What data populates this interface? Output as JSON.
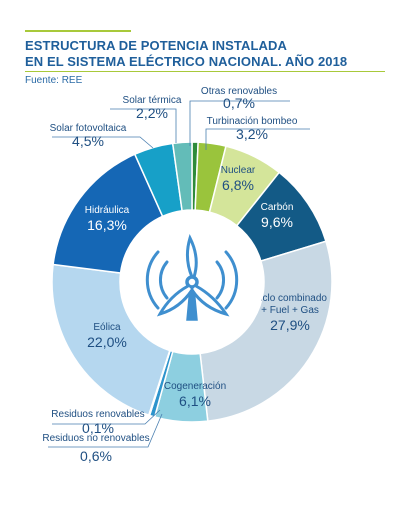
{
  "header": {
    "title_line1": "ESTRUCTURA DE POTENCIA INSTALADA",
    "title_line2": "EN EL SISTEMA ELÉCTRICO NACIONAL. AÑO 2018",
    "source": "Fuente: REE"
  },
  "icon": "wind-turbine-icon",
  "chart_data": {
    "type": "pie",
    "title": "ESTRUCTURA DE POTENCIA INSTALADA EN EL SISTEMA ELÉCTRICO NACIONAL. AÑO 2018",
    "unit": "%",
    "slices": [
      {
        "label": "Otras renovables",
        "value": 0.7,
        "value_label": "0,7%",
        "color": "#2e8b3a"
      },
      {
        "label": "Turbinación bombeo",
        "value": 3.2,
        "value_label": "3,2%",
        "color": "#9ac43c"
      },
      {
        "label": "Nuclear",
        "value": 6.8,
        "value_label": "6,8%",
        "color": "#d4e59a"
      },
      {
        "label": "Carbón",
        "value": 9.6,
        "value_label": "9,6%",
        "color": "#135a86"
      },
      {
        "label": "Ciclo combinado + Fuel + Gas",
        "value": 27.9,
        "value_label": "27,9%",
        "color": "#c8d8e4"
      },
      {
        "label": "Cogeneración",
        "value": 6.1,
        "value_label": "6,1%",
        "color": "#8dcfe0"
      },
      {
        "label": "Residuos no renovables",
        "value": 0.6,
        "value_label": "0,6%",
        "color": "#2d94cc"
      },
      {
        "label": "Residuos renovables",
        "value": 0.1,
        "value_label": "0,1%",
        "color": "#1b6ea8"
      },
      {
        "label": "Eólica",
        "value": 22.0,
        "value_label": "22,0%",
        "color": "#b5d7ef"
      },
      {
        "label": "Hidráulica",
        "value": 16.3,
        "value_label": "16,3%",
        "color": "#1567b5"
      },
      {
        "label": "Solar fotovoltaica",
        "value": 4.5,
        "value_label": "4,5%",
        "color": "#17a0c8"
      },
      {
        "label": "Solar térmica",
        "value": 2.2,
        "value_label": "2,2%",
        "color": "#63bcb8"
      }
    ],
    "legend": "none"
  },
  "colors": {
    "title": "#1f5f9b",
    "accent": "#a8c93a",
    "label_dark": "#1f4f82",
    "label_light": "#ffffff",
    "icon": "#3f8fcf"
  }
}
